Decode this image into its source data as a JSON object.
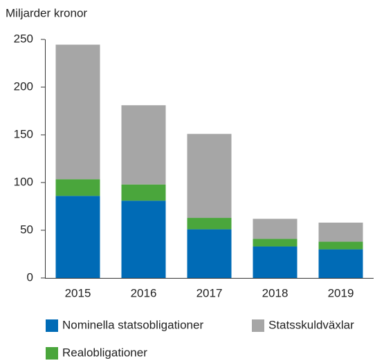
{
  "chart_data": {
    "type": "stacked_bar",
    "y_label": "Miljarder kronor",
    "categories": [
      "2015",
      "2016",
      "2017",
      "2018",
      "2019"
    ],
    "series": [
      {
        "name": "Nominella statsobligationer",
        "color": "#006bb6",
        "values": [
          86,
          81,
          51,
          33,
          30
        ]
      },
      {
        "name": "Realobligationer",
        "color": "#4aa63c",
        "values": [
          17.5,
          17,
          12,
          8,
          8
        ]
      },
      {
        "name": "Statsskuldväxlar",
        "color": "#a6a6a6",
        "values": [
          141,
          83,
          88,
          21,
          20
        ]
      }
    ],
    "ylim": [
      0,
      250
    ],
    "yticks": [
      0,
      50,
      100,
      150,
      200,
      250
    ],
    "grid": false
  }
}
